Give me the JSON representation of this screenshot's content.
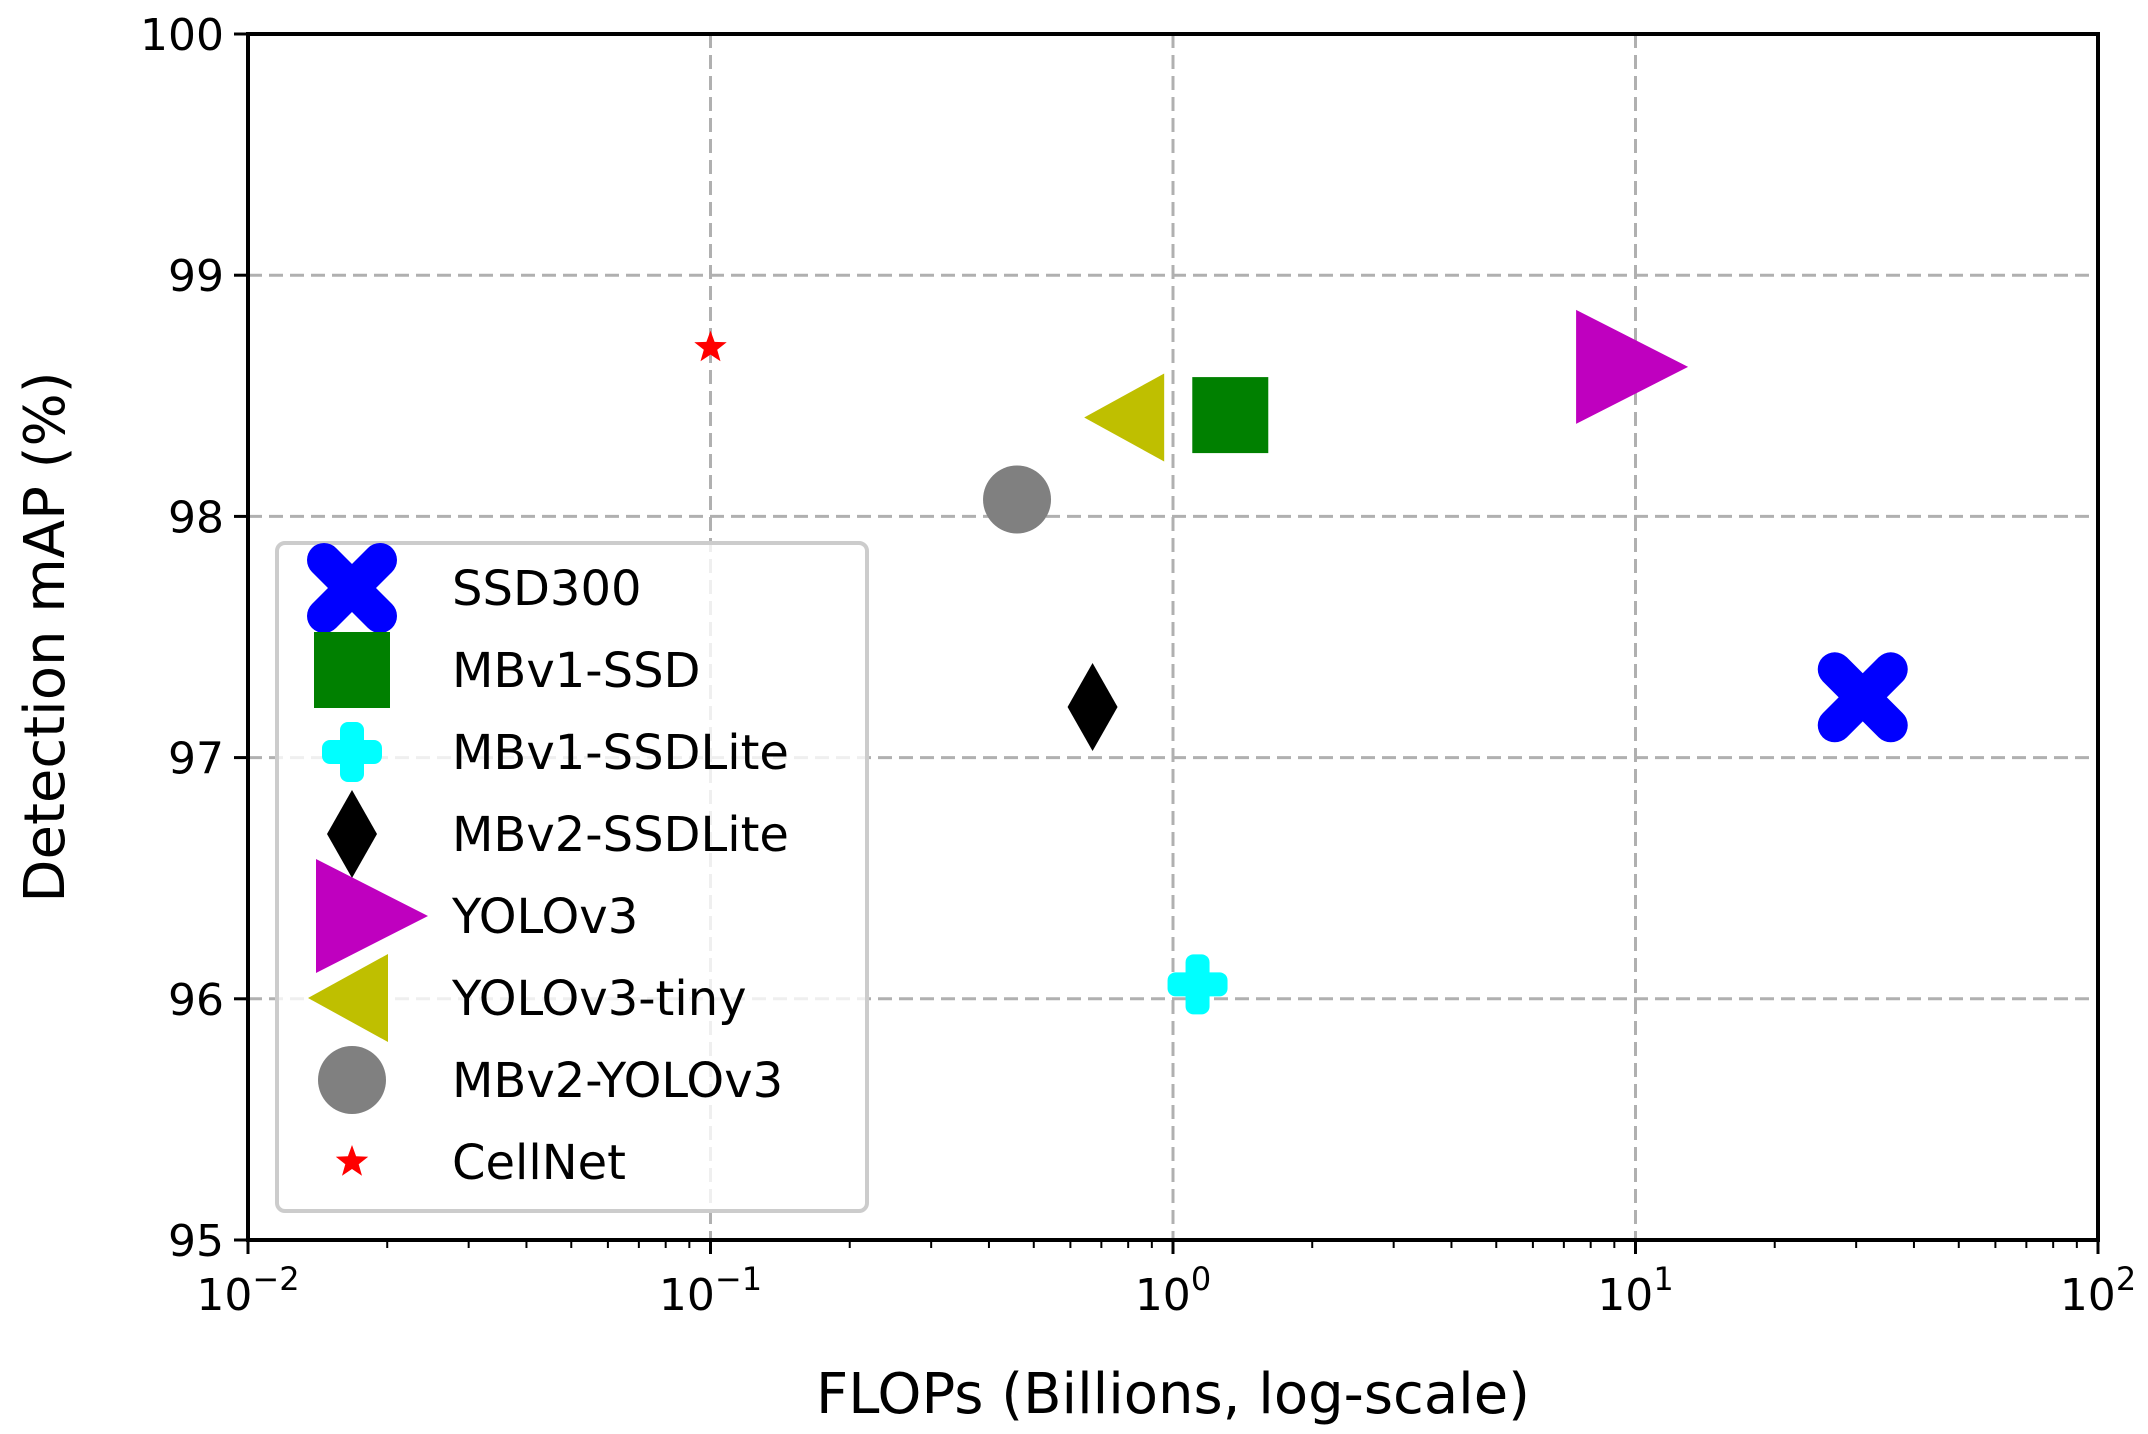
{
  "chart_data": {
    "type": "scatter",
    "title": "",
    "xlabel": "FLOPs (Billions, log-scale)",
    "ylabel": "Detection mAP (%)",
    "xscale": "log",
    "xlim": [
      0.01,
      100
    ],
    "ylim": [
      95,
      100
    ],
    "grid": true,
    "x_ticks": [
      {
        "value": 0.01,
        "base": "10",
        "exp": "−2"
      },
      {
        "value": 0.1,
        "base": "10",
        "exp": "−1"
      },
      {
        "value": 1,
        "base": "10",
        "exp": "0"
      },
      {
        "value": 10,
        "base": "10",
        "exp": "1"
      },
      {
        "value": 100,
        "base": "10",
        "exp": "2"
      }
    ],
    "y_ticks": [
      "95",
      "96",
      "97",
      "98",
      "99",
      "100"
    ],
    "legend_position": "center-left",
    "series": [
      {
        "name": "SSD300",
        "x": 31.0,
        "y": 97.25,
        "marker": "X",
        "color": "#0000ff"
      },
      {
        "name": "MBv1-SSD",
        "x": 1.33,
        "y": 98.42,
        "marker": "square",
        "color": "#008000"
      },
      {
        "name": "MBv1-SSDLite",
        "x": 1.13,
        "y": 96.06,
        "marker": "plus",
        "color": "#00ffff"
      },
      {
        "name": "MBv2-SSDLite",
        "x": 0.67,
        "y": 97.21,
        "marker": "diamond",
        "color": "#000000"
      },
      {
        "name": "YOLOv3",
        "x": 8.9,
        "y": 98.62,
        "marker": "triangle-right",
        "color": "#bf00bf"
      },
      {
        "name": "YOLOv3-tiny",
        "x": 0.8,
        "y": 98.41,
        "marker": "triangle-left",
        "color": "#bfbf00"
      },
      {
        "name": "MBv2-YOLOv3",
        "x": 0.46,
        "y": 98.07,
        "marker": "circle",
        "color": "#808080"
      },
      {
        "name": "CellNet",
        "x": 0.1,
        "y": 98.7,
        "marker": "star",
        "color": "#ff0000"
      }
    ]
  }
}
